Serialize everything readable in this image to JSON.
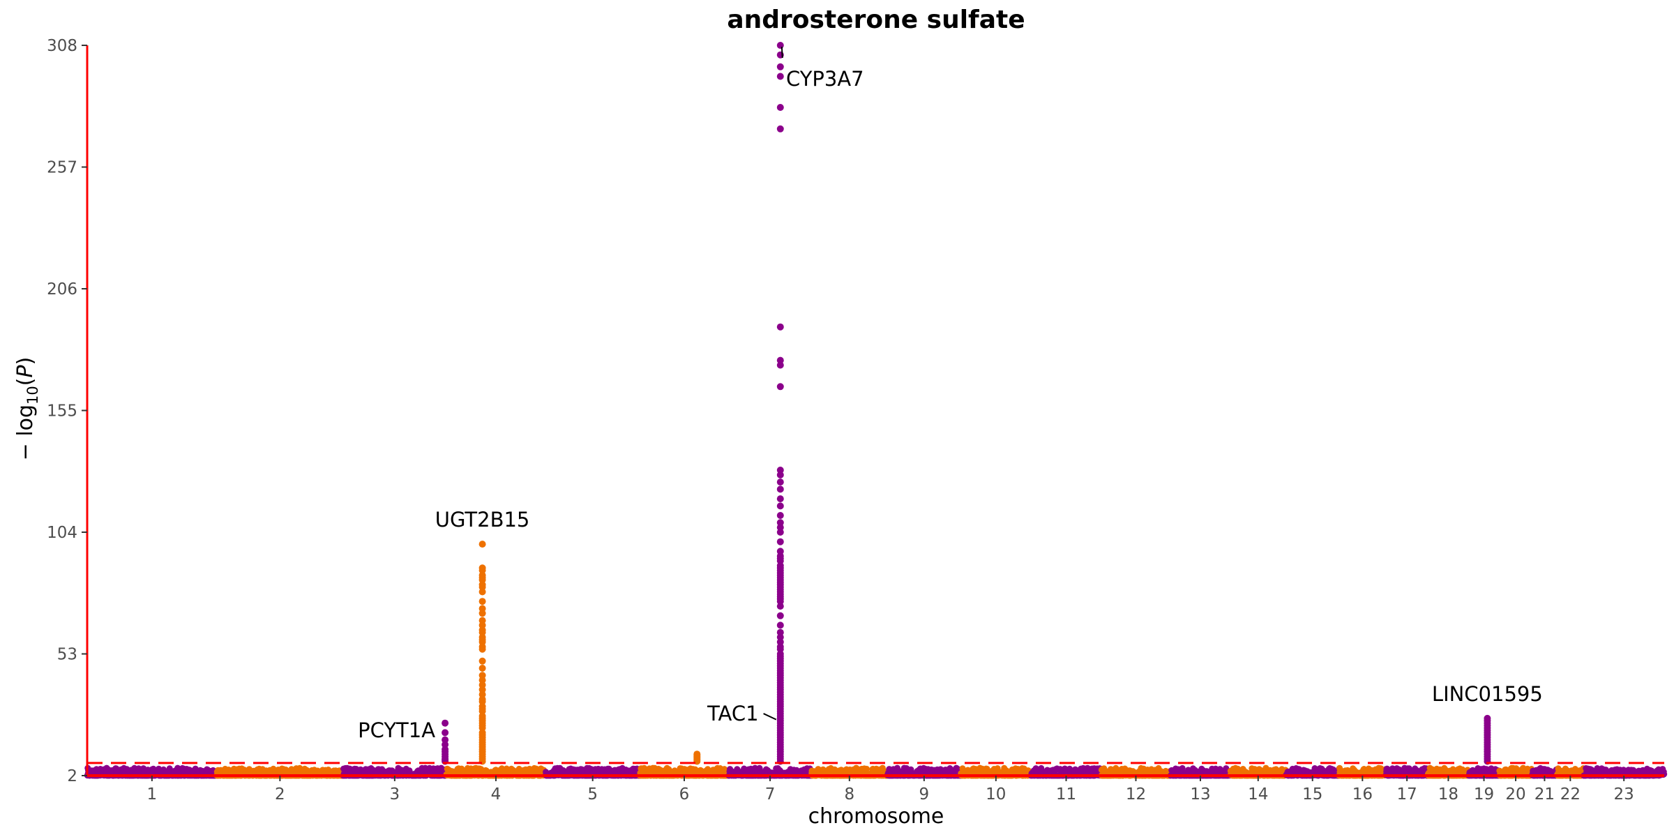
{
  "chart_data": {
    "type": "scatter",
    "title": "androsterone sulfate",
    "xlabel": "chromosome",
    "ylabel": "−log10(P)",
    "ylabel_parts": {
      "prefix": "− log",
      "sub": "10",
      "open": "(",
      "var": "P",
      "close": ")"
    },
    "ylim": [
      2,
      308
    ],
    "yticks": [
      2,
      53,
      104,
      155,
      206,
      257,
      308
    ],
    "significance_threshold": 7.3,
    "colors": {
      "odd": "#8b008b",
      "even": "#ee7100",
      "threshold": "#ff0000",
      "axis": "#ff0000"
    },
    "chromosomes": [
      {
        "label": "1",
        "length": 249
      },
      {
        "label": "2",
        "length": 243
      },
      {
        "label": "3",
        "length": 198
      },
      {
        "label": "4",
        "length": 191
      },
      {
        "label": "5",
        "length": 181
      },
      {
        "label": "6",
        "length": 171
      },
      {
        "label": "7",
        "length": 159
      },
      {
        "label": "8",
        "length": 146
      },
      {
        "label": "9",
        "length": 141
      },
      {
        "label": "10",
        "length": 135
      },
      {
        "label": "11",
        "length": 135
      },
      {
        "label": "12",
        "length": 133
      },
      {
        "label": "13",
        "length": 115
      },
      {
        "label": "14",
        "length": 107
      },
      {
        "label": "15",
        "length": 102
      },
      {
        "label": "16",
        "length": 90
      },
      {
        "label": "17",
        "length": 81
      },
      {
        "label": "18",
        "length": 78
      },
      {
        "label": "19",
        "length": 59
      },
      {
        "label": "20",
        "length": 63
      },
      {
        "label": "21",
        "length": 48
      },
      {
        "label": "22",
        "length": 51
      },
      {
        "label": "23",
        "length": 155
      }
    ],
    "peaks": [
      {
        "gene": "PCYT1A",
        "chrom": "3",
        "pos_mb": 195.8,
        "values": [
          24,
          20,
          17,
          15,
          13,
          12,
          11,
          10,
          9,
          8.5,
          8
        ]
      },
      {
        "gene": "UGT2B15",
        "chrom": "4",
        "pos_mb": 69.5,
        "values": [
          99,
          89,
          88,
          86,
          85,
          84,
          82,
          81,
          79,
          75,
          72,
          70,
          67,
          65,
          63,
          62,
          60,
          59,
          58,
          56,
          55,
          50,
          47,
          44,
          42,
          40,
          38,
          36,
          34,
          33,
          31,
          30,
          29,
          27,
          26,
          25,
          24,
          23,
          22,
          20,
          19,
          18,
          17,
          16,
          15,
          14,
          13,
          12,
          11,
          10,
          9,
          8
        ]
      },
      {
        "gene": "",
        "chrom": "6",
        "pos_mb": 110,
        "values": [
          11,
          10.5,
          10,
          9.5,
          9,
          8.5,
          8
        ]
      },
      {
        "gene": "CYP3A7",
        "chrom": "7",
        "pos_mb": 99.3,
        "values": [
          308,
          304,
          299,
          295,
          282,
          273,
          190,
          176,
          174,
          165,
          130,
          128,
          125,
          122,
          118,
          115,
          111,
          108,
          106,
          104,
          100,
          96,
          94,
          93,
          92,
          90,
          89,
          88,
          87,
          86,
          85,
          84,
          83,
          82,
          81,
          80,
          79,
          78,
          77,
          76,
          75,
          73,
          69,
          65,
          62,
          60,
          58,
          56,
          55,
          53,
          52,
          51,
          50,
          49,
          48,
          47,
          46,
          45,
          44,
          43,
          42,
          41,
          40,
          39,
          38,
          37,
          36,
          35,
          34,
          33,
          32,
          31,
          30,
          29,
          28,
          27,
          26,
          25,
          24,
          23,
          22,
          21,
          20,
          19,
          18,
          17,
          16,
          15,
          14,
          13,
          12,
          11,
          10,
          9,
          8
        ]
      },
      {
        "gene": "LINC01595",
        "chrom": "19",
        "pos_mb": 36,
        "values": [
          26,
          25,
          24,
          23,
          22,
          21,
          20,
          19,
          18,
          17,
          16,
          15,
          14,
          13,
          12,
          11,
          10,
          9,
          8
        ]
      }
    ],
    "annotations": [
      {
        "gene": "CYP3A7",
        "label_x_chrom": "7",
        "label_x_mb": 114,
        "label_y": 294,
        "line": true
      },
      {
        "gene": "UGT2B15",
        "label_x_chrom": "4",
        "label_x_mb": 69.5,
        "label_y": 104,
        "line": false
      },
      {
        "gene": "PCYT1A",
        "label_x_chrom": "3",
        "label_x_mb": 195.8,
        "label_y": 21,
        "line": false,
        "anchor": "end"
      },
      {
        "gene": "TAC1",
        "label_x_chrom": "7",
        "label_x_mb": 40,
        "label_y": 28,
        "line": true,
        "point_y": 25.5
      },
      {
        "gene": "LINC01595",
        "label_x_chrom": "19",
        "label_x_mb": 36,
        "label_y": 31,
        "line": false
      }
    ]
  }
}
